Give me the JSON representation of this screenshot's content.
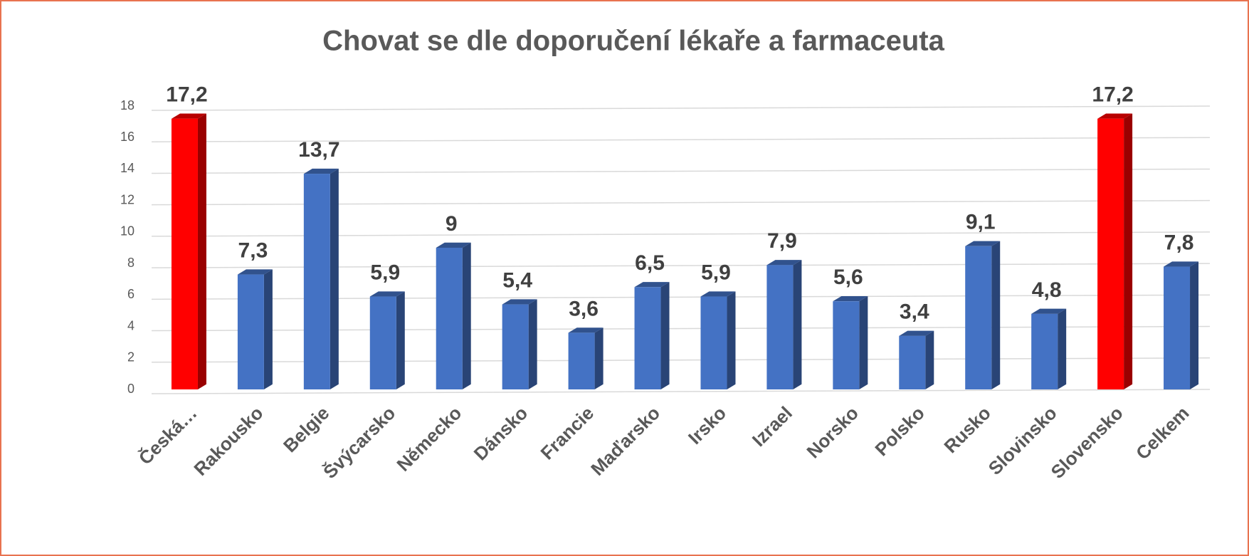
{
  "chart_data": {
    "type": "bar3d",
    "title": "Chovat se dle doporučení lékaře a farmaceuta",
    "categories": [
      "Česká…",
      "Rakousko",
      "Belgie",
      "Švýcarsko",
      "Německo",
      "Dánsko",
      "Francie",
      "Maďarsko",
      "Irsko",
      "Izrael",
      "Norsko",
      "Polsko",
      "Rusko",
      "Slovinsko",
      "Slovensko",
      "Celkem"
    ],
    "values": [
      17.2,
      7.3,
      13.7,
      5.9,
      9,
      5.4,
      3.6,
      6.5,
      5.9,
      7.9,
      5.6,
      3.4,
      9.1,
      4.8,
      17.2,
      7.8
    ],
    "value_labels": [
      "17,2",
      "7,3",
      "13,7",
      "5,9",
      "9",
      "5,4",
      "3,6",
      "6,5",
      "5,9",
      "7,9",
      "5,6",
      "3,4",
      "9,1",
      "4,8",
      "17,2",
      "7,8"
    ],
    "colors": [
      "#ff0000",
      "#4472c4",
      "#4472c4",
      "#4472c4",
      "#4472c4",
      "#4472c4",
      "#4472c4",
      "#4472c4",
      "#4472c4",
      "#4472c4",
      "#4472c4",
      "#4472c4",
      "#4472c4",
      "#4472c4",
      "#ff0000",
      "#4472c4"
    ],
    "ylim": [
      0,
      18
    ],
    "yticks": [
      0,
      2,
      4,
      6,
      8,
      10,
      12,
      14,
      16,
      18
    ],
    "grid": true
  }
}
